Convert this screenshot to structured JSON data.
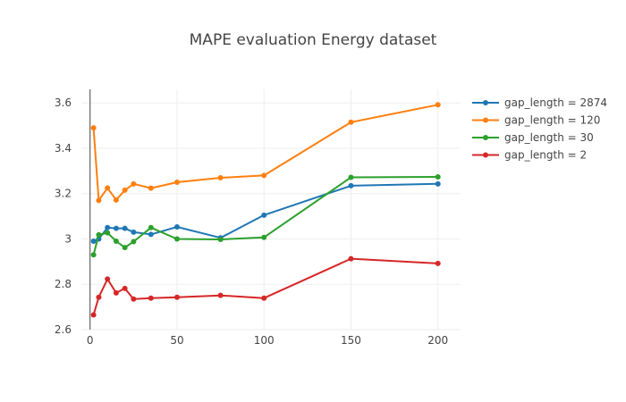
{
  "chart_data": {
    "type": "line",
    "title": "MAPE evaluation Energy dataset",
    "xlabel": "",
    "ylabel": "",
    "xlim": [
      -5,
      213
    ],
    "ylim": [
      2.6,
      3.66
    ],
    "xticks": [
      0,
      50,
      100,
      150,
      200
    ],
    "yticks": [
      2.6,
      2.8,
      3.0,
      3.2,
      3.4,
      3.6
    ],
    "ytick_labels": [
      "2.6",
      "2.8",
      "3",
      "3.2",
      "3.4",
      "3.6"
    ],
    "grid": true,
    "legend_position": "top-right",
    "x": [
      2,
      5,
      10,
      15,
      20,
      25,
      35,
      50,
      75,
      100,
      150,
      200
    ],
    "series": [
      {
        "name": "gap_length = 2874",
        "color": "#1f77b4",
        "values": [
          2.99,
          3.0,
          3.05,
          3.047,
          3.047,
          3.03,
          3.02,
          3.053,
          3.005,
          3.105,
          3.235,
          3.243
        ]
      },
      {
        "name": "gap_length = 120",
        "color": "#ff7f0e",
        "values": [
          3.49,
          3.17,
          3.225,
          3.172,
          3.215,
          3.243,
          3.224,
          3.25,
          3.27,
          3.28,
          3.515,
          3.592
        ]
      },
      {
        "name": "gap_length = 30",
        "color": "#2ca02c",
        "values": [
          2.93,
          3.018,
          3.027,
          2.99,
          2.962,
          2.988,
          3.05,
          3.0,
          2.998,
          3.007,
          3.272,
          3.274
        ]
      },
      {
        "name": "gap_length = 2",
        "color": "#d62728",
        "values": [
          2.665,
          2.743,
          2.823,
          2.762,
          2.782,
          2.735,
          2.739,
          2.743,
          2.751,
          2.739,
          2.913,
          2.892
        ]
      }
    ]
  }
}
